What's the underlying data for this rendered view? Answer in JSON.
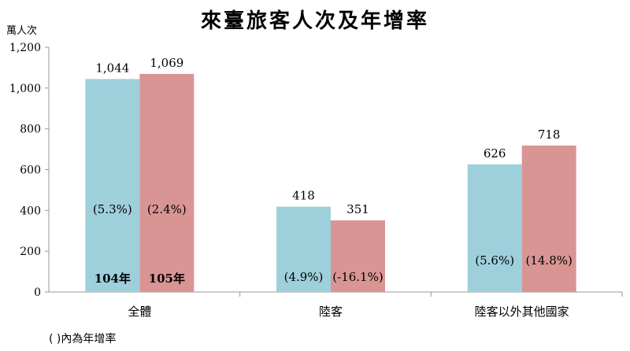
{
  "chart_data": {
    "type": "bar",
    "title": "來臺旅客人次及年增率",
    "ylabel": "萬人次",
    "ylim": [
      0,
      1200
    ],
    "yticks": [
      "0",
      "200",
      "400",
      "600",
      "800",
      "1,000",
      "1,200"
    ],
    "grid": false,
    "categories": [
      "全體",
      "陸客",
      "陸客以外其他國家"
    ],
    "series": [
      {
        "name": "104年",
        "color": "#9ed0dc",
        "values": [
          1044,
          418,
          626
        ],
        "value_labels": [
          "1,044",
          "418",
          "626"
        ],
        "growth_labels": [
          "(5.3%)",
          "(4.9%)",
          "(5.6%)"
        ]
      },
      {
        "name": "105年",
        "color": "#d99594",
        "values": [
          1069,
          351,
          718
        ],
        "value_labels": [
          "1,069",
          "351",
          "718"
        ],
        "growth_labels": [
          "(2.4%)",
          "(-16.1%)",
          "(14.8%)"
        ]
      }
    ],
    "footnote": "( )內為年增率"
  }
}
